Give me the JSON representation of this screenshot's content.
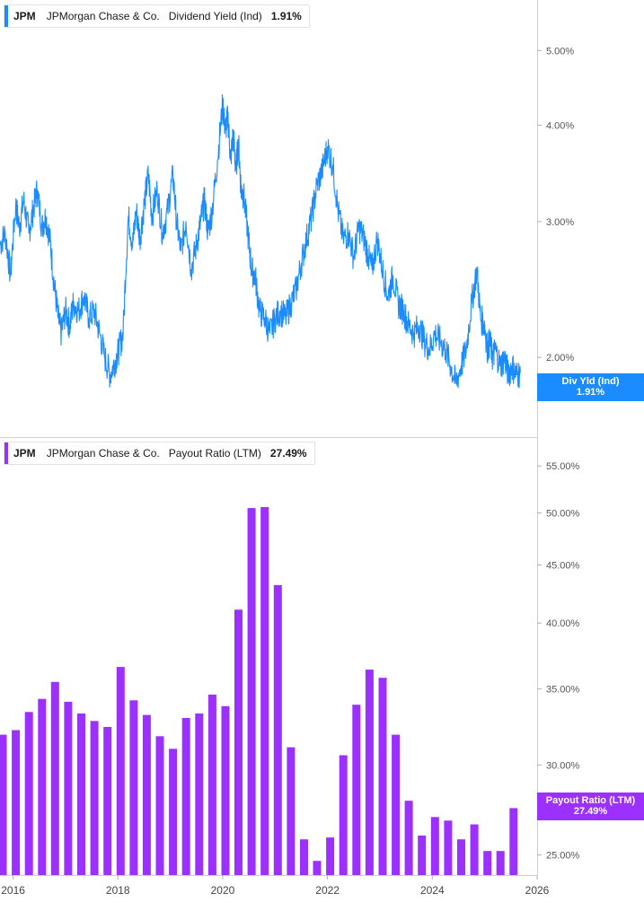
{
  "panels": {
    "top": {
      "ticker": "JPM",
      "company": "JPMorgan Chase & Co.",
      "metric": "Dividend Yield (Ind)",
      "value": "1.91%",
      "tag_title": "Div Yld (Ind)",
      "tag_value": "1.91%",
      "color": "#1a8cff"
    },
    "bottom": {
      "ticker": "JPM",
      "company": "JPMorgan Chase & Co.",
      "metric": "Payout Ratio (LTM)",
      "value": "27.49%",
      "tag_title": "Payout Ratio (LTM)",
      "tag_value": "27.49%",
      "color": "#9b30ff"
    }
  },
  "chart_data": [
    {
      "type": "line",
      "title": "Dividend Yield (Ind)",
      "scale": "log",
      "ylim": [
        1.65,
        5.6
      ],
      "xlim": [
        2015.75,
        2026
      ],
      "y_ticks": [
        {
          "value": 2.0,
          "label": "2.00%"
        },
        {
          "value": 3.0,
          "label": "3.00%"
        },
        {
          "value": 4.0,
          "label": "4.00%"
        },
        {
          "value": 5.0,
          "label": "5.00%"
        }
      ],
      "series": [
        {
          "color": "#1a8cff",
          "x": [
            2015.75,
            2015.85,
            2015.95,
            2016.05,
            2016.12,
            2016.2,
            2016.3,
            2016.38,
            2016.46,
            2016.55,
            2016.62,
            2016.7,
            2016.78,
            2016.86,
            2016.92,
            2017.0,
            2017.08,
            2017.15,
            2017.25,
            2017.35,
            2017.45,
            2017.55,
            2017.65,
            2017.75,
            2017.85,
            2017.95,
            2018.02,
            2018.1,
            2018.2,
            2018.28,
            2018.35,
            2018.42,
            2018.5,
            2018.58,
            2018.65,
            2018.75,
            2018.85,
            2018.95,
            2019.05,
            2019.12,
            2019.2,
            2019.3,
            2019.4,
            2019.5,
            2019.58,
            2019.65,
            2019.72,
            2019.8,
            2019.9,
            2020.0,
            2020.05,
            2020.1,
            2020.15,
            2020.2,
            2020.25,
            2020.3,
            2020.35,
            2020.4,
            2020.48,
            2020.55,
            2020.62,
            2020.7,
            2020.8,
            2020.9,
            2021.0,
            2021.1,
            2021.2,
            2021.3,
            2021.4,
            2021.5,
            2021.6,
            2021.7,
            2021.8,
            2021.9,
            2022.0,
            2022.1,
            2022.2,
            2022.3,
            2022.4,
            2022.5,
            2022.6,
            2022.7,
            2022.78,
            2022.85,
            2022.95,
            2023.05,
            2023.15,
            2023.25,
            2023.35,
            2023.45,
            2023.55,
            2023.65,
            2023.75,
            2023.85,
            2023.95,
            2024.05,
            2024.15,
            2024.25,
            2024.35,
            2024.45,
            2024.55,
            2024.65,
            2024.75,
            2024.85,
            2024.92,
            2025.0,
            2025.05,
            2025.1,
            2025.15,
            2025.2,
            2025.3,
            2025.38,
            2025.45,
            2025.52,
            2025.6,
            2025.68
          ],
          "values": [
            2.8,
            2.9,
            2.55,
            3.15,
            2.95,
            3.2,
            2.9,
            3.1,
            3.3,
            2.95,
            3.05,
            2.85,
            2.5,
            2.25,
            2.15,
            2.3,
            2.2,
            2.35,
            2.3,
            2.4,
            2.25,
            2.3,
            2.15,
            2.0,
            1.9,
            1.98,
            2.05,
            2.15,
            3.05,
            2.8,
            3.1,
            2.85,
            3.15,
            3.45,
            3.05,
            3.3,
            2.9,
            3.1,
            3.45,
            3.0,
            2.75,
            3.0,
            2.6,
            2.8,
            3.0,
            3.2,
            2.9,
            3.1,
            3.6,
            4.25,
            3.95,
            4.1,
            3.6,
            3.9,
            3.5,
            3.8,
            3.3,
            3.25,
            2.9,
            2.6,
            2.55,
            2.3,
            2.25,
            2.15,
            2.25,
            2.3,
            2.25,
            2.35,
            2.45,
            2.65,
            2.85,
            3.05,
            3.35,
            3.5,
            3.75,
            3.55,
            3.1,
            2.85,
            2.9,
            2.7,
            2.95,
            2.85,
            2.7,
            2.6,
            2.85,
            2.6,
            2.4,
            2.55,
            2.35,
            2.3,
            2.2,
            2.15,
            2.2,
            2.1,
            2.05,
            2.15,
            2.1,
            2.05,
            1.95,
            1.85,
            1.95,
            2.05,
            2.35,
            2.6,
            2.25,
            2.2,
            2.05,
            2.1,
            2.0,
            2.05,
            1.95,
            2.0,
            1.9,
            1.95,
            1.9,
            1.91
          ]
        }
      ]
    },
    {
      "type": "bar",
      "title": "Payout Ratio (LTM)",
      "scale": "log",
      "ylim": [
        24,
        58
      ],
      "xlim": [
        2015.75,
        2026
      ],
      "y_ticks": [
        {
          "value": 25,
          "label": "25.00%"
        },
        {
          "value": 30,
          "label": "30.00%"
        },
        {
          "value": 35,
          "label": "35.00%"
        },
        {
          "value": 40,
          "label": "40.00%"
        },
        {
          "value": 45,
          "label": "45.00%"
        },
        {
          "value": 50,
          "label": "50.00%"
        },
        {
          "value": 55,
          "label": "55.00%"
        }
      ],
      "x_ticks": [
        {
          "value": 2016,
          "label": "2016"
        },
        {
          "value": 2018,
          "label": "2018"
        },
        {
          "value": 2020,
          "label": "2020"
        },
        {
          "value": 2022,
          "label": "2022"
        },
        {
          "value": 2024,
          "label": "2024"
        },
        {
          "value": 2026,
          "label": "2026"
        }
      ],
      "series": [
        {
          "color": "#9b30ff",
          "x": [
            2015.75,
            2016.0,
            2016.25,
            2016.5,
            2016.75,
            2017.0,
            2017.25,
            2017.5,
            2017.75,
            2018.0,
            2018.25,
            2018.5,
            2018.75,
            2019.0,
            2019.25,
            2019.5,
            2019.75,
            2020.0,
            2020.25,
            2020.5,
            2020.75,
            2021.0,
            2021.25,
            2021.5,
            2021.75,
            2022.0,
            2022.25,
            2022.5,
            2022.75,
            2023.0,
            2023.25,
            2023.5,
            2023.75,
            2024.0,
            2024.25,
            2024.5,
            2024.75,
            2025.0,
            2025.25,
            2025.5
          ],
          "values": [
            31.9,
            32.2,
            33.4,
            34.3,
            35.5,
            34.1,
            33.3,
            32.8,
            32.4,
            36.6,
            34.2,
            33.2,
            31.8,
            31.0,
            33.0,
            33.3,
            34.6,
            33.8,
            41.1,
            50.5,
            50.6,
            43.2,
            31.1,
            25.8,
            24.7,
            25.9,
            30.6,
            33.9,
            36.4,
            35.8,
            31.9,
            27.9,
            26.0,
            27.0,
            26.8,
            25.8,
            26.6,
            25.2,
            25.2,
            27.49
          ]
        }
      ]
    }
  ]
}
